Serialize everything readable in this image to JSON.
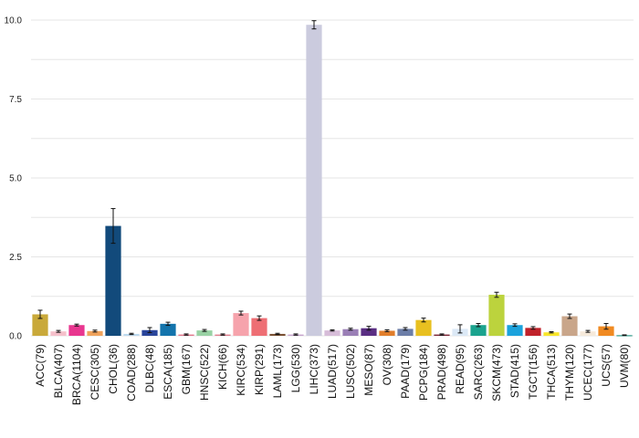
{
  "chart_data": {
    "type": "bar",
    "title": "",
    "xlabel": "",
    "ylabel": "",
    "ylim": [
      0,
      10
    ],
    "yticks": [
      0.0,
      2.5,
      5.0,
      7.5,
      10.0
    ],
    "ytick_labels": [
      "0.0",
      "2.5",
      "5.0",
      "7.5",
      "10.0"
    ],
    "grid": "horizontal",
    "legend": "none",
    "categories": [
      "ACC(79)",
      "BLCA(407)",
      "BRCA(1104)",
      "CESC(305)",
      "CHOL(36)",
      "COAD(288)",
      "DLBC(48)",
      "ESCA(185)",
      "GBM(167)",
      "HNSC(522)",
      "KICH(66)",
      "KIRC(534)",
      "KIRP(291)",
      "LAML(173)",
      "LGG(530)",
      "LIHC(373)",
      "LUAD(517)",
      "LUSC(502)",
      "MESO(87)",
      "OV(308)",
      "PAAD(179)",
      "PCPG(184)",
      "PRAD(498)",
      "READ(95)",
      "SARC(263)",
      "SKCM(473)",
      "STAD(415)",
      "TGCT(156)",
      "THCA(513)",
      "THYM(120)",
      "UCEC(177)",
      "UCS(57)",
      "UVM(80)"
    ],
    "values": [
      0.68,
      0.14,
      0.34,
      0.15,
      3.48,
      0.06,
      0.18,
      0.38,
      0.04,
      0.17,
      0.04,
      0.72,
      0.56,
      0.06,
      0.04,
      9.85,
      0.17,
      0.21,
      0.24,
      0.16,
      0.22,
      0.5,
      0.04,
      0.22,
      0.34,
      1.3,
      0.34,
      0.25,
      0.11,
      0.62,
      0.14,
      0.3,
      0.02
    ],
    "errors": [
      0.13,
      0.03,
      0.03,
      0.03,
      0.55,
      0.02,
      0.08,
      0.05,
      0.02,
      0.03,
      0.02,
      0.06,
      0.07,
      0.02,
      0.02,
      0.13,
      0.02,
      0.03,
      0.06,
      0.03,
      0.04,
      0.06,
      0.02,
      0.13,
      0.05,
      0.08,
      0.04,
      0.04,
      0.02,
      0.07,
      0.03,
      0.09,
      0.01
    ],
    "colors": [
      "#C9A93A",
      "#F5C0CB",
      "#E8368F",
      "#F0A35C",
      "#124A7B",
      "#BCD9EE",
      "#29449A",
      "#1374AC",
      "#E2778C",
      "#99D2A4",
      "#E17E8E",
      "#F6A3AC",
      "#EE6E74",
      "#7A5133",
      "#C7A3CD",
      "#CBCBDE",
      "#D7BDD9",
      "#9A7FB6",
      "#5A2E83",
      "#E17E2B",
      "#6C7EA8",
      "#E8C020",
      "#7A2435",
      "#DCE9F6",
      "#1AA38E",
      "#BCD33D",
      "#1BA2DC",
      "#C0222A",
      "#F8E52A",
      "#C9A68A",
      "#F6EADB",
      "#F08A22",
      "#2E9A89"
    ]
  }
}
